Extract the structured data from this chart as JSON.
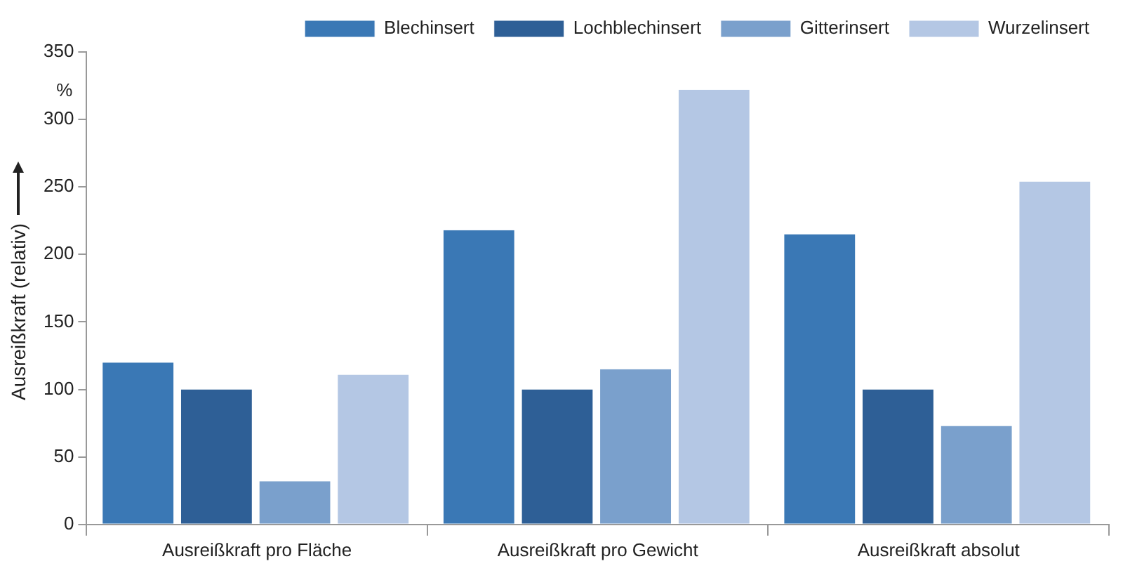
{
  "chart_data": {
    "type": "bar",
    "ylabel": "Ausreißkraft (relativ)",
    "annotations": [
      "%"
    ],
    "categories": [
      "Ausreißkraft pro Fläche",
      "Ausreißkraft pro Gewicht",
      "Ausreißkraft absolut"
    ],
    "series": [
      {
        "name": "Blechinsert",
        "color": "#3a78b5",
        "values": [
          120,
          218,
          215
        ]
      },
      {
        "name": "Lochblechinsert",
        "color": "#2e5f96",
        "values": [
          100,
          100,
          100
        ]
      },
      {
        "name": "Gitterinsert",
        "color": "#7aa0cc",
        "values": [
          32,
          115,
          73
        ]
      },
      {
        "name": "Wurzelinsert",
        "color": "#b4c7e4",
        "values": [
          111,
          322,
          254
        ]
      }
    ],
    "ylim": [
      0,
      350
    ],
    "yticks": [
      0,
      50,
      100,
      150,
      200,
      250,
      300,
      350
    ],
    "grid": false,
    "legend": "top right"
  }
}
